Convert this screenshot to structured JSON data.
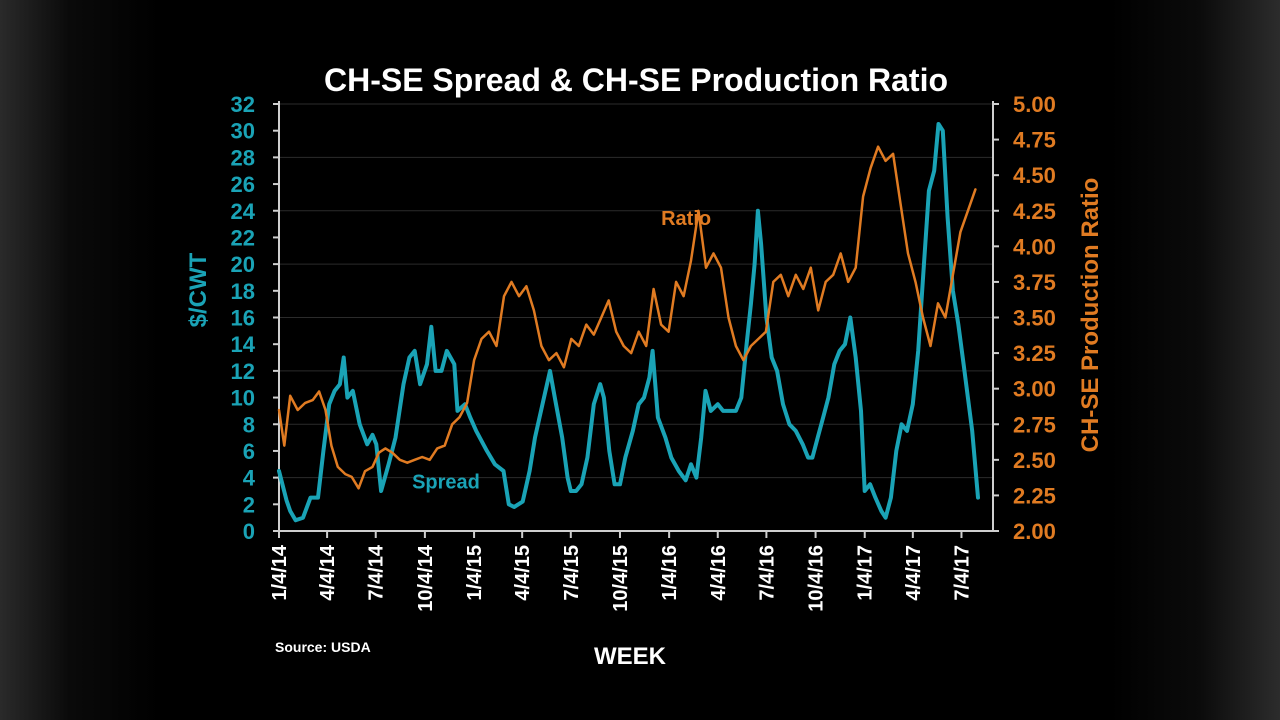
{
  "chart_data": {
    "type": "line",
    "title": "CH-SE Spread & CH-SE Production Ratio",
    "xlabel": "WEEK",
    "ylabel_left": "$/CWT",
    "ylabel_right": "CH-SE Production Ratio",
    "source": "Source: USDA",
    "colors": {
      "spread": "#1aa3b6",
      "ratio": "#e07b22",
      "text": "#ffffff",
      "axis": "#cfcfcf",
      "grid": "#2b2b2b"
    },
    "x_range": [
      "2014-01-04",
      "2017-09-01"
    ],
    "x_ticks": [
      {
        "date": "2014-01-04",
        "label": "1/4/14"
      },
      {
        "date": "2014-04-04",
        "label": "4/4/14"
      },
      {
        "date": "2014-07-04",
        "label": "7/4/14"
      },
      {
        "date": "2014-10-04",
        "label": "10/4/14"
      },
      {
        "date": "2015-01-04",
        "label": "1/4/15"
      },
      {
        "date": "2015-04-04",
        "label": "4/4/15"
      },
      {
        "date": "2015-07-04",
        "label": "7/4/15"
      },
      {
        "date": "2015-10-04",
        "label": "10/4/15"
      },
      {
        "date": "2016-01-04",
        "label": "1/4/16"
      },
      {
        "date": "2016-04-04",
        "label": "4/4/16"
      },
      {
        "date": "2016-07-04",
        "label": "7/4/16"
      },
      {
        "date": "2016-10-04",
        "label": "10/4/16"
      },
      {
        "date": "2017-01-04",
        "label": "1/4/17"
      },
      {
        "date": "2017-04-04",
        "label": "4/4/17"
      },
      {
        "date": "2017-07-04",
        "label": "7/4/17"
      }
    ],
    "y_left": {
      "range": [
        0,
        32
      ],
      "ticks": [
        "0",
        "2",
        "4",
        "6",
        "8",
        "10",
        "12",
        "14",
        "16",
        "18",
        "20",
        "22",
        "24",
        "26",
        "28",
        "30",
        "32"
      ]
    },
    "y_right": {
      "range": [
        2.0,
        5.0
      ],
      "ticks": [
        "2.00",
        "2.25",
        "2.50",
        "2.75",
        "3.00",
        "3.25",
        "3.50",
        "3.75",
        "4.00",
        "4.25",
        "4.50",
        "4.75",
        "5.00"
      ]
    },
    "series": [
      {
        "name": "Spread",
        "axis": "left",
        "label_at": {
          "date": "2014-09-10",
          "value": 3.2
        },
        "points": [
          [
            "2014-01-04",
            4.5
          ],
          [
            "2014-01-18",
            2.3
          ],
          [
            "2014-01-25",
            1.5
          ],
          [
            "2014-02-04",
            0.8
          ],
          [
            "2014-02-18",
            1.0
          ],
          [
            "2014-03-04",
            2.5
          ],
          [
            "2014-03-18",
            2.5
          ],
          [
            "2014-03-28",
            6.0
          ],
          [
            "2014-04-08",
            9.5
          ],
          [
            "2014-04-18",
            10.5
          ],
          [
            "2014-04-28",
            11.0
          ],
          [
            "2014-05-05",
            13.0
          ],
          [
            "2014-05-12",
            10.0
          ],
          [
            "2014-05-22",
            10.5
          ],
          [
            "2014-06-04",
            8.0
          ],
          [
            "2014-06-18",
            6.5
          ],
          [
            "2014-06-28",
            7.2
          ],
          [
            "2014-07-05",
            6.5
          ],
          [
            "2014-07-14",
            3.0
          ],
          [
            "2014-07-28",
            5.0
          ],
          [
            "2014-08-10",
            7.0
          ],
          [
            "2014-08-25",
            11.0
          ],
          [
            "2014-09-05",
            13.0
          ],
          [
            "2014-09-15",
            13.5
          ],
          [
            "2014-09-25",
            11.0
          ],
          [
            "2014-10-08",
            12.5
          ],
          [
            "2014-10-16",
            15.3
          ],
          [
            "2014-10-24",
            12.0
          ],
          [
            "2014-11-04",
            12.0
          ],
          [
            "2014-11-14",
            13.5
          ],
          [
            "2014-11-28",
            12.5
          ],
          [
            "2014-12-04",
            9.0
          ],
          [
            "2014-12-18",
            9.5
          ],
          [
            "2014-12-28",
            8.5
          ],
          [
            "2015-01-08",
            7.5
          ],
          [
            "2015-01-28",
            6.0
          ],
          [
            "2015-02-12",
            5.0
          ],
          [
            "2015-02-28",
            4.5
          ],
          [
            "2015-03-10",
            2.0
          ],
          [
            "2015-03-20",
            1.8
          ],
          [
            "2015-03-28",
            2.0
          ],
          [
            "2015-04-05",
            2.2
          ],
          [
            "2015-04-18",
            4.5
          ],
          [
            "2015-04-28",
            7.0
          ],
          [
            "2015-05-12",
            9.5
          ],
          [
            "2015-05-26",
            12.0
          ],
          [
            "2015-06-04",
            10.0
          ],
          [
            "2015-06-18",
            7.0
          ],
          [
            "2015-06-28",
            4.0
          ],
          [
            "2015-07-04",
            3.0
          ],
          [
            "2015-07-14",
            3.0
          ],
          [
            "2015-07-24",
            3.5
          ],
          [
            "2015-08-04",
            5.5
          ],
          [
            "2015-08-16",
            9.5
          ],
          [
            "2015-08-28",
            11.0
          ],
          [
            "2015-09-04",
            10.0
          ],
          [
            "2015-09-14",
            6.0
          ],
          [
            "2015-09-24",
            3.5
          ],
          [
            "2015-10-04",
            3.5
          ],
          [
            "2015-10-14",
            5.5
          ],
          [
            "2015-10-28",
            7.5
          ],
          [
            "2015-11-08",
            9.5
          ],
          [
            "2015-11-18",
            10.0
          ],
          [
            "2015-11-28",
            11.5
          ],
          [
            "2015-12-04",
            13.5
          ],
          [
            "2015-12-14",
            8.5
          ],
          [
            "2015-12-28",
            7.0
          ],
          [
            "2016-01-08",
            5.5
          ],
          [
            "2016-01-22",
            4.5
          ],
          [
            "2016-02-04",
            3.8
          ],
          [
            "2016-02-14",
            5.0
          ],
          [
            "2016-02-24",
            4.0
          ],
          [
            "2016-03-04",
            7.0
          ],
          [
            "2016-03-12",
            10.5
          ],
          [
            "2016-03-22",
            9.0
          ],
          [
            "2016-04-04",
            9.5
          ],
          [
            "2016-04-14",
            9.0
          ],
          [
            "2016-04-28",
            9.0
          ],
          [
            "2016-05-08",
            9.0
          ],
          [
            "2016-05-18",
            10.0
          ],
          [
            "2016-05-28",
            14.0
          ],
          [
            "2016-06-05",
            17.0
          ],
          [
            "2016-06-12",
            20.0
          ],
          [
            "2016-06-18",
            24.0
          ],
          [
            "2016-06-24",
            21.5
          ],
          [
            "2016-07-04",
            16.0
          ],
          [
            "2016-07-14",
            13.0
          ],
          [
            "2016-07-24",
            12.0
          ],
          [
            "2016-08-04",
            9.5
          ],
          [
            "2016-08-16",
            8.0
          ],
          [
            "2016-08-28",
            7.5
          ],
          [
            "2016-09-10",
            6.5
          ],
          [
            "2016-09-20",
            5.5
          ],
          [
            "2016-09-28",
            5.5
          ],
          [
            "2016-10-08",
            7.0
          ],
          [
            "2016-10-18",
            8.5
          ],
          [
            "2016-10-28",
            10.0
          ],
          [
            "2016-11-08",
            12.5
          ],
          [
            "2016-11-18",
            13.5
          ],
          [
            "2016-11-28",
            14.0
          ],
          [
            "2016-12-08",
            16.0
          ],
          [
            "2016-12-18",
            13.0
          ],
          [
            "2016-12-28",
            9.0
          ],
          [
            "2017-01-04",
            3.0
          ],
          [
            "2017-01-14",
            3.5
          ],
          [
            "2017-01-24",
            2.5
          ],
          [
            "2017-02-04",
            1.5
          ],
          [
            "2017-02-12",
            1.0
          ],
          [
            "2017-02-22",
            2.5
          ],
          [
            "2017-03-04",
            6.0
          ],
          [
            "2017-03-14",
            8.0
          ],
          [
            "2017-03-24",
            7.5
          ],
          [
            "2017-04-04",
            9.5
          ],
          [
            "2017-04-14",
            13.5
          ],
          [
            "2017-04-24",
            19.5
          ],
          [
            "2017-05-04",
            25.5
          ],
          [
            "2017-05-14",
            27.0
          ],
          [
            "2017-05-22",
            30.5
          ],
          [
            "2017-05-30",
            30.0
          ],
          [
            "2017-06-08",
            23.5
          ],
          [
            "2017-06-18",
            18.0
          ],
          [
            "2017-06-28",
            15.5
          ],
          [
            "2017-07-08",
            12.5
          ],
          [
            "2017-07-16",
            10.0
          ],
          [
            "2017-07-24",
            7.5
          ],
          [
            "2017-08-04",
            2.5
          ]
        ]
      },
      {
        "name": "Ratio",
        "axis": "right",
        "label_at": {
          "date": "2015-12-20",
          "value": 4.15
        },
        "points": [
          [
            "2014-01-04",
            2.85
          ],
          [
            "2014-01-14",
            2.6
          ],
          [
            "2014-01-25",
            2.95
          ],
          [
            "2014-02-08",
            2.85
          ],
          [
            "2014-02-22",
            2.9
          ],
          [
            "2014-03-08",
            2.92
          ],
          [
            "2014-03-20",
            2.98
          ],
          [
            "2014-04-01",
            2.85
          ],
          [
            "2014-04-12",
            2.6
          ],
          [
            "2014-04-24",
            2.45
          ],
          [
            "2014-05-08",
            2.4
          ],
          [
            "2014-05-20",
            2.38
          ],
          [
            "2014-06-02",
            2.3
          ],
          [
            "2014-06-14",
            2.42
          ],
          [
            "2014-06-28",
            2.45
          ],
          [
            "2014-07-10",
            2.55
          ],
          [
            "2014-07-22",
            2.58
          ],
          [
            "2014-08-04",
            2.55
          ],
          [
            "2014-08-18",
            2.5
          ],
          [
            "2014-09-01",
            2.48
          ],
          [
            "2014-09-15",
            2.5
          ],
          [
            "2014-09-29",
            2.52
          ],
          [
            "2014-10-13",
            2.5
          ],
          [
            "2014-10-27",
            2.58
          ],
          [
            "2014-11-10",
            2.6
          ],
          [
            "2014-11-24",
            2.75
          ],
          [
            "2014-12-08",
            2.8
          ],
          [
            "2014-12-22",
            2.9
          ],
          [
            "2015-01-04",
            3.2
          ],
          [
            "2015-01-18",
            3.35
          ],
          [
            "2015-02-01",
            3.4
          ],
          [
            "2015-02-15",
            3.3
          ],
          [
            "2015-03-01",
            3.65
          ],
          [
            "2015-03-15",
            3.75
          ],
          [
            "2015-03-29",
            3.65
          ],
          [
            "2015-04-12",
            3.72
          ],
          [
            "2015-04-26",
            3.55
          ],
          [
            "2015-05-10",
            3.3
          ],
          [
            "2015-05-24",
            3.2
          ],
          [
            "2015-06-07",
            3.25
          ],
          [
            "2015-06-21",
            3.15
          ],
          [
            "2015-07-05",
            3.35
          ],
          [
            "2015-07-19",
            3.3
          ],
          [
            "2015-08-02",
            3.45
          ],
          [
            "2015-08-16",
            3.38
          ],
          [
            "2015-08-30",
            3.5
          ],
          [
            "2015-09-13",
            3.62
          ],
          [
            "2015-09-27",
            3.4
          ],
          [
            "2015-10-11",
            3.3
          ],
          [
            "2015-10-25",
            3.25
          ],
          [
            "2015-11-08",
            3.4
          ],
          [
            "2015-11-22",
            3.3
          ],
          [
            "2015-12-06",
            3.7
          ],
          [
            "2015-12-20",
            3.45
          ],
          [
            "2016-01-03",
            3.4
          ],
          [
            "2016-01-17",
            3.75
          ],
          [
            "2016-01-31",
            3.65
          ],
          [
            "2016-02-14",
            3.9
          ],
          [
            "2016-02-28",
            4.25
          ],
          [
            "2016-03-13",
            3.85
          ],
          [
            "2016-03-27",
            3.95
          ],
          [
            "2016-04-10",
            3.85
          ],
          [
            "2016-04-24",
            3.5
          ],
          [
            "2016-05-08",
            3.3
          ],
          [
            "2016-05-22",
            3.2
          ],
          [
            "2016-06-05",
            3.3
          ],
          [
            "2016-06-19",
            3.35
          ],
          [
            "2016-07-03",
            3.4
          ],
          [
            "2016-07-17",
            3.75
          ],
          [
            "2016-07-31",
            3.8
          ],
          [
            "2016-08-14",
            3.65
          ],
          [
            "2016-08-28",
            3.8
          ],
          [
            "2016-09-11",
            3.7
          ],
          [
            "2016-09-25",
            3.85
          ],
          [
            "2016-10-09",
            3.55
          ],
          [
            "2016-10-23",
            3.75
          ],
          [
            "2016-11-06",
            3.8
          ],
          [
            "2016-11-20",
            3.95
          ],
          [
            "2016-12-04",
            3.75
          ],
          [
            "2016-12-18",
            3.85
          ],
          [
            "2017-01-01",
            4.35
          ],
          [
            "2017-01-15",
            4.55
          ],
          [
            "2017-01-29",
            4.7
          ],
          [
            "2017-02-12",
            4.6
          ],
          [
            "2017-02-26",
            4.65
          ],
          [
            "2017-03-12",
            4.3
          ],
          [
            "2017-03-26",
            3.95
          ],
          [
            "2017-04-09",
            3.75
          ],
          [
            "2017-04-23",
            3.5
          ],
          [
            "2017-05-07",
            3.3
          ],
          [
            "2017-05-21",
            3.6
          ],
          [
            "2017-06-04",
            3.5
          ],
          [
            "2017-06-18",
            3.8
          ],
          [
            "2017-07-02",
            4.1
          ],
          [
            "2017-07-16",
            4.25
          ],
          [
            "2017-07-30",
            4.4
          ]
        ]
      }
    ]
  }
}
